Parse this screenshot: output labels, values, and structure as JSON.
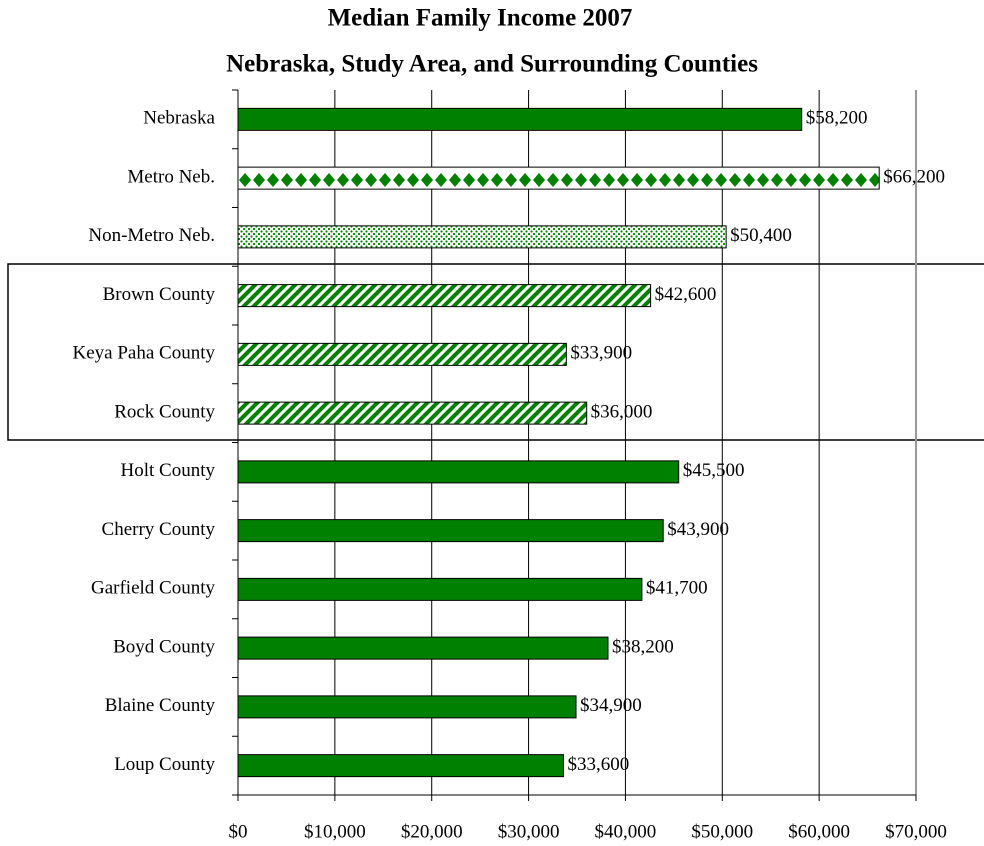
{
  "chart_data": {
    "type": "bar",
    "orientation": "horizontal",
    "title": "Median Family Income 2007",
    "subtitle": "Nebraska, Study Area, and Surrounding Counties",
    "categories": [
      "Nebraska",
      "Metro Neb.",
      "Non-Metro Neb.",
      "Brown County",
      "Keya Paha County",
      "Rock County",
      "Holt County",
      "Cherry County",
      "Garfield County",
      "Boyd County",
      "Blaine County",
      "Loup County"
    ],
    "values": [
      58200,
      66200,
      50400,
      42600,
      33900,
      36000,
      45500,
      43900,
      41700,
      38200,
      34900,
      33600
    ],
    "value_labels": [
      "$58,200",
      "$66,200",
      "$50,400",
      "$42,600",
      "$33,900",
      "$36,000",
      "$45,500",
      "$43,900",
      "$41,700",
      "$38,200",
      "$34,900",
      "$33,600"
    ],
    "patterns": [
      "solid",
      "diamond",
      "dots",
      "stripes",
      "stripes",
      "stripes",
      "solid",
      "solid",
      "solid",
      "solid",
      "solid",
      "solid"
    ],
    "color": "#008000",
    "xlim": [
      0,
      70000
    ],
    "xticks": [
      {
        "value": 0,
        "label": "$0"
      },
      {
        "value": 10000,
        "label": "$10,000"
      },
      {
        "value": 20000,
        "label": "$20,000"
      },
      {
        "value": 30000,
        "label": "$30,000"
      },
      {
        "value": 40000,
        "label": "$40,000"
      },
      {
        "value": 50000,
        "label": "$50,000"
      },
      {
        "value": 60000,
        "label": "$60,000"
      },
      {
        "value": 70000,
        "label": "$70,000"
      }
    ],
    "grid": true
  }
}
